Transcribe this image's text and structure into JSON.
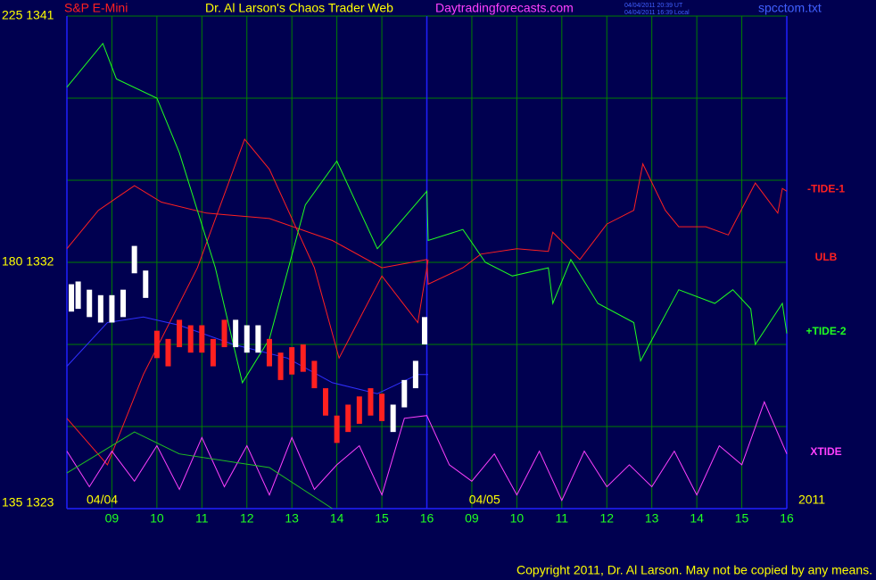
{
  "chart_data": {
    "type": "line",
    "title": "Dr. Al Larson's Chaos Trader Web",
    "instrument": "S&P E-Mini",
    "site": "Daytradingforecasts.com",
    "timestamps": [
      "04/04/2011 20:39 UT",
      "04/04/2011 16:39 Local"
    ],
    "file": "spcctom.txt",
    "dates": [
      {
        "value": 0,
        "label": "04/04"
      },
      {
        "value": 8.5,
        "label": "04/05"
      }
    ],
    "year": "2011",
    "copyright": "Copyright 2011, Dr. Al Larson. May not be copied by any means.",
    "background": "#000050",
    "grid_color": "#008000",
    "frame_color": "#2020ff",
    "xlim": [
      0,
      16
    ],
    "xticks": [
      {
        "value": 1,
        "label": "09"
      },
      {
        "value": 2,
        "label": "10"
      },
      {
        "value": 3,
        "label": "11"
      },
      {
        "value": 4,
        "label": "12"
      },
      {
        "value": 5,
        "label": "13"
      },
      {
        "value": 6,
        "label": "14"
      },
      {
        "value": 7,
        "label": "15"
      },
      {
        "value": 8,
        "label": "16"
      },
      {
        "value": 9,
        "label": "09"
      },
      {
        "value": 10,
        "label": "10"
      },
      {
        "value": 11,
        "label": "11"
      },
      {
        "value": 12,
        "label": "12"
      },
      {
        "value": 13,
        "label": "13"
      },
      {
        "value": 14,
        "label": "14"
      },
      {
        "value": 15,
        "label": "15"
      },
      {
        "value": 16,
        "label": "16"
      }
    ],
    "day_breaks": [
      0,
      8,
      16
    ],
    "ylim": [
      1323,
      1341
    ],
    "yticks": [
      {
        "value": 1341,
        "label": "225 1341"
      },
      {
        "value": 1332,
        "label": "180 1332"
      },
      {
        "value": 1323,
        "label": "135 1323"
      }
    ],
    "ygrid": [
      1323,
      1326,
      1329,
      1332,
      1335,
      1338,
      1341
    ],
    "grid": true,
    "series": [
      {
        "name": "-TIDE-1",
        "color": "#ff2020",
        "x": [
          0,
          0.7,
          1.5,
          2.1,
          3.1,
          4.5,
          5.9,
          7.0,
          8.0,
          8.03,
          8.8,
          9.2,
          10,
          10.7,
          10.8,
          11.4,
          12,
          12.6,
          12.8,
          13.3,
          13.6,
          14.2,
          14.7,
          15.3,
          15.8,
          15.9,
          16
        ],
        "values": [
          1332.5,
          1333.9,
          1334.8,
          1334.2,
          1333.8,
          1333.6,
          1332.8,
          1331.8,
          1332.1,
          1331.2,
          1331.8,
          1332.3,
          1332.5,
          1332.4,
          1333.1,
          1332.1,
          1333.4,
          1333.9,
          1335.6,
          1333.9,
          1333.3,
          1333.3,
          1333.0,
          1334.9,
          1333.8,
          1334.7,
          1334.6
        ]
      },
      {
        "name": "ULB",
        "color": "#ff2020",
        "x": [
          0,
          0.9,
          1.7,
          2.9,
          3.95,
          4.5,
          5.5,
          6.05,
          7.0,
          7.8,
          8.03
        ],
        "values": [
          1326.3,
          1324.6,
          1327.9,
          1331.8,
          1336.5,
          1335.4,
          1331.8,
          1328.5,
          1331.5,
          1329.8,
          1332.1
        ]
      },
      {
        "name": "+TIDE-2",
        "color": "#20ff20",
        "x": [
          0,
          0.8,
          1.1,
          2,
          2.5,
          3.3,
          3.9,
          4.5,
          5.3,
          6,
          6.9,
          8,
          8.03,
          8.8,
          9.3,
          9.9,
          10.7,
          10.8,
          11.2,
          11.8,
          12.6,
          12.75,
          13.6,
          14.4,
          14.8,
          15.2,
          15.3,
          15.9,
          16
        ],
        "values": [
          1338.4,
          1340.0,
          1338.7,
          1338.0,
          1336.0,
          1331.8,
          1327.6,
          1329.2,
          1334.1,
          1335.7,
          1332.5,
          1334.6,
          1332.8,
          1333.2,
          1332.0,
          1331.5,
          1331.8,
          1330.5,
          1332.1,
          1330.5,
          1329.8,
          1328.4,
          1331.0,
          1330.5,
          1331.0,
          1330.3,
          1329.0,
          1330.5,
          1329.4
        ]
      },
      {
        "name": "XTIDE",
        "color": "#ff40ff",
        "x": [
          0,
          0.5,
          1,
          1.5,
          2,
          2.5,
          3,
          3.5,
          4,
          4.5,
          5,
          5.5,
          6,
          6.5,
          7,
          7.5,
          8,
          8.5,
          9,
          9.5,
          10,
          10.5,
          11,
          11.5,
          12,
          12.5,
          13,
          13.5,
          14,
          14.5,
          15,
          15.5,
          16
        ],
        "values": [
          1325.1,
          1323.8,
          1325.1,
          1324.0,
          1325.3,
          1323.7,
          1325.6,
          1323.8,
          1325.3,
          1323.5,
          1325.6,
          1323.7,
          1324.6,
          1325.3,
          1323.5,
          1326.3,
          1326.4,
          1324.6,
          1324.0,
          1325.0,
          1323.5,
          1325.1,
          1323.3,
          1325.1,
          1323.8,
          1324.6,
          1323.8,
          1325.1,
          1323.5,
          1325.3,
          1324.6,
          1326.9,
          1325.0
        ]
      },
      {
        "color": "#3030ff",
        "x": [
          0,
          0.9,
          1.7,
          2.5,
          3.7,
          4.9,
          5.9,
          6.9,
          7.8,
          8.03
        ],
        "values": [
          1328.2,
          1329.8,
          1330.0,
          1329.7,
          1329.0,
          1328.5,
          1327.6,
          1327.2,
          1327.9,
          1327.9
        ]
      },
      {
        "color": "#20c020",
        "x": [
          0,
          1.5,
          2.5,
          4.5,
          5.9
        ],
        "values": [
          1324.3,
          1325.8,
          1325.0,
          1324.5,
          1323.0
        ]
      }
    ],
    "bars": {
      "x": [
        0.1,
        0.25,
        0.5,
        0.75,
        1,
        1.25,
        1.5,
        1.75,
        2,
        2.25,
        2.5,
        2.75,
        3,
        3.25,
        3.5,
        3.75,
        4,
        4.25,
        4.5,
        4.75,
        5,
        5.25,
        5.5,
        5.75,
        6,
        6.25,
        6.5,
        6.75,
        7,
        7.25,
        7.5,
        7.75,
        7.95
      ],
      "high": [
        1331.2,
        1331.3,
        1331.0,
        1330.8,
        1330.8,
        1331.0,
        1332.6,
        1331.7,
        1329.5,
        1329.2,
        1329.9,
        1329.7,
        1329.7,
        1329.2,
        1329.9,
        1329.9,
        1329.7,
        1329.7,
        1329.2,
        1328.7,
        1328.9,
        1329.0,
        1328.4,
        1327.4,
        1326.4,
        1326.8,
        1327.1,
        1327.4,
        1327.2,
        1326.8,
        1327.7,
        1328.4,
        1330.0
      ],
      "low": [
        1330.2,
        1330.3,
        1330.0,
        1329.8,
        1329.8,
        1330.0,
        1331.6,
        1330.7,
        1328.5,
        1328.2,
        1328.9,
        1328.7,
        1328.7,
        1328.2,
        1328.9,
        1328.9,
        1328.7,
        1328.7,
        1328.2,
        1327.7,
        1327.9,
        1328.0,
        1327.4,
        1326.4,
        1325.4,
        1325.8,
        1326.1,
        1326.4,
        1326.2,
        1325.8,
        1326.7,
        1327.4,
        1329.0
      ],
      "colors": [
        "#ffffff",
        "#ffffff",
        "#ffffff",
        "#ffffff",
        "#ffffff",
        "#ffffff",
        "#ffffff",
        "#ffffff",
        "#ff2020",
        "#ff2020",
        "#ff2020",
        "#ff2020",
        "#ff2020",
        "#ff2020",
        "#ff2020",
        "#ffffff",
        "#ffffff",
        "#ffffff",
        "#ff2020",
        "#ff2020",
        "#ff2020",
        "#ff2020",
        "#ff2020",
        "#ff2020",
        "#ff2020",
        "#ff2020",
        "#ff2020",
        "#ff2020",
        "#ff2020",
        "#ffffff",
        "#ffffff",
        "#ffffff",
        "#ffffff"
      ]
    }
  }
}
